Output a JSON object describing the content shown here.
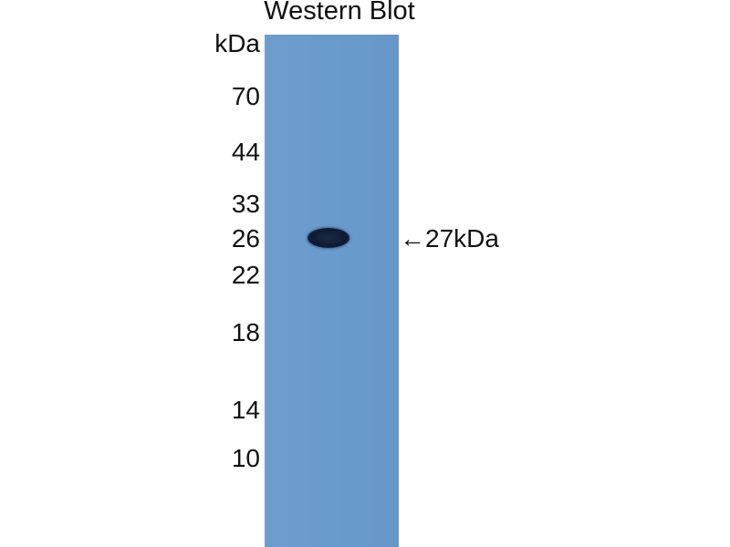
{
  "title": "Western Blot",
  "unit_label": "kDa",
  "markers": [
    "70",
    "44",
    "33",
    "26",
    "22",
    "18",
    "14",
    "10"
  ],
  "band_annotation": "←27kDa",
  "colors": {
    "membrane": "#6a9bcd",
    "band": "#0d1a33"
  }
}
